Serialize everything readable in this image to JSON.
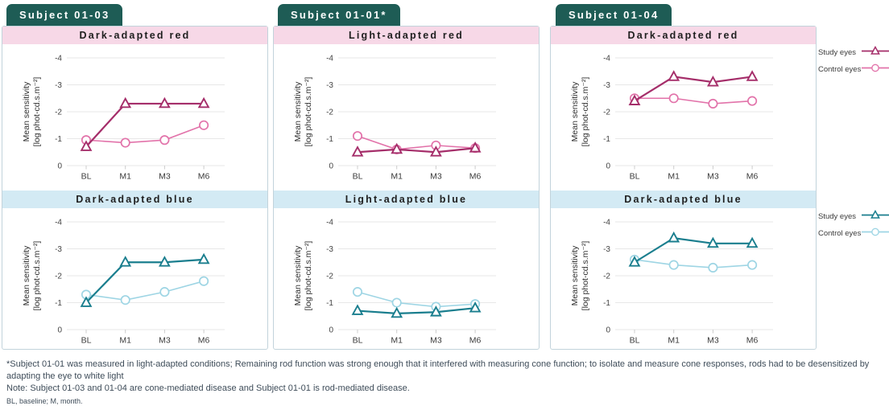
{
  "subjects": [
    {
      "label": "Subject 01-03"
    },
    {
      "label": "Subject 01-01*"
    },
    {
      "label": "Subject 01-04"
    }
  ],
  "axis": {
    "ylabel_line1": "Mean sensitivity",
    "ylabel_line2": "[log phot-cd.s.m⁻²]",
    "y_ticks": [
      -4,
      -3,
      -2,
      -1,
      0
    ],
    "ylim": [
      0,
      -4
    ],
    "categories": [
      "BL",
      "M1",
      "M3",
      "M6"
    ]
  },
  "colors": {
    "badge_bg": "#1e5c55",
    "badge_text": "#ffffff",
    "red_header_bg": "#f7d8e7",
    "blue_header_bg": "#d3eaf4",
    "study_red": "#a52e6a",
    "control_red": "#e273aa",
    "study_blue": "#1a7e8e",
    "control_blue": "#9ed5e4",
    "gridline": "#e7e7e7",
    "card_border": "#c2d3db",
    "footnote_text": "#3e4c59"
  },
  "chart_data": [
    {
      "type": "line",
      "subject": "Subject 01-03",
      "title": "Dark-adapted red",
      "categories": [
        "BL",
        "M1",
        "M3",
        "M6"
      ],
      "ylabel": "Mean sensitivity [log phot-cd.s.m⁻²]",
      "ylim": [
        0,
        -4
      ],
      "grid": true,
      "series": [
        {
          "name": "Study eyes",
          "marker": "triangle",
          "color": "#a52e6a",
          "values": [
            -0.7,
            -2.3,
            -2.3,
            -2.3
          ]
        },
        {
          "name": "Control eyes",
          "marker": "circle",
          "color": "#e273aa",
          "values": [
            -0.95,
            -0.85,
            -0.95,
            -1.5
          ]
        }
      ]
    },
    {
      "type": "line",
      "subject": "Subject 01-03",
      "title": "Dark-adapted blue",
      "categories": [
        "BL",
        "M1",
        "M3",
        "M6"
      ],
      "ylabel": "Mean sensitivity [log phot-cd.s.m⁻²]",
      "ylim": [
        0,
        -4
      ],
      "grid": true,
      "series": [
        {
          "name": "Study eyes",
          "marker": "triangle",
          "color": "#1a7e8e",
          "values": [
            -1.0,
            -2.5,
            -2.5,
            -2.6
          ]
        },
        {
          "name": "Control eyes",
          "marker": "circle",
          "color": "#9ed5e4",
          "values": [
            -1.3,
            -1.1,
            -1.4,
            -1.8
          ]
        }
      ]
    },
    {
      "type": "line",
      "subject": "Subject 01-01*",
      "title": "Light-adapted red",
      "categories": [
        "BL",
        "M1",
        "M3",
        "M6"
      ],
      "ylabel": "Mean sensitivity [log phot-cd.s.m⁻²]",
      "ylim": [
        0,
        -4
      ],
      "grid": true,
      "series": [
        {
          "name": "Study eyes",
          "marker": "triangle",
          "color": "#a52e6a",
          "values": [
            -0.5,
            -0.6,
            -0.5,
            -0.65
          ]
        },
        {
          "name": "Control eyes",
          "marker": "circle",
          "color": "#e273aa",
          "values": [
            -1.1,
            -0.6,
            -0.75,
            -0.65
          ]
        }
      ]
    },
    {
      "type": "line",
      "subject": "Subject 01-01*",
      "title": "Light-adapted blue",
      "categories": [
        "BL",
        "M1",
        "M3",
        "M6"
      ],
      "ylabel": "Mean sensitivity [log phot-cd.s.m⁻²]",
      "ylim": [
        0,
        -4
      ],
      "grid": true,
      "series": [
        {
          "name": "Study eyes",
          "marker": "triangle",
          "color": "#1a7e8e",
          "values": [
            -0.7,
            -0.6,
            -0.65,
            -0.8
          ]
        },
        {
          "name": "Control eyes",
          "marker": "circle",
          "color": "#9ed5e4",
          "values": [
            -1.4,
            -1.0,
            -0.85,
            -0.95
          ]
        }
      ]
    },
    {
      "type": "line",
      "subject": "Subject 01-04",
      "title": "Dark-adapted red",
      "categories": [
        "BL",
        "M1",
        "M3",
        "M6"
      ],
      "ylabel": "Mean sensitivity [log phot-cd.s.m⁻²]",
      "ylim": [
        0,
        -4
      ],
      "grid": true,
      "series": [
        {
          "name": "Study eyes",
          "marker": "triangle",
          "color": "#a52e6a",
          "values": [
            -2.4,
            -3.3,
            -3.1,
            -3.3
          ]
        },
        {
          "name": "Control eyes",
          "marker": "circle",
          "color": "#e273aa",
          "values": [
            -2.5,
            -2.5,
            -2.3,
            -2.4
          ]
        }
      ]
    },
    {
      "type": "line",
      "subject": "Subject 01-04",
      "title": "Dark-adapted blue",
      "categories": [
        "BL",
        "M1",
        "M3",
        "M6"
      ],
      "ylabel": "Mean sensitivity [log phot-cd.s.m⁻²]",
      "ylim": [
        0,
        -4
      ],
      "grid": true,
      "series": [
        {
          "name": "Study eyes",
          "marker": "triangle",
          "color": "#1a7e8e",
          "values": [
            -2.5,
            -3.4,
            -3.2,
            -3.2
          ]
        },
        {
          "name": "Control eyes",
          "marker": "circle",
          "color": "#9ed5e4",
          "values": [
            -2.6,
            -2.4,
            -2.3,
            -2.4
          ]
        }
      ]
    }
  ],
  "legends": [
    {
      "entries": [
        {
          "label": "Study eyes",
          "marker": "triangle",
          "color": "#a52e6a"
        },
        {
          "label": "Control eyes",
          "marker": "circle",
          "color": "#e273aa"
        }
      ]
    },
    {
      "entries": [
        {
          "label": "Study eyes",
          "marker": "triangle",
          "color": "#1a7e8e"
        },
        {
          "label": "Control eyes",
          "marker": "circle",
          "color": "#9ed5e4"
        }
      ]
    }
  ],
  "footnotes": [
    "*Subject 01-01 was measured in light-adapted conditions; Remaining rod function was strong enough that it interfered with measuring cone function; to isolate and measure cone responses, rods had to be desensitized by adapting the eye to white light",
    "Note: Subject 01-03 and 01-04 are cone-mediated disease and Subject 01-01 is rod-mediated disease.",
    "BL, baseline; M, month."
  ]
}
